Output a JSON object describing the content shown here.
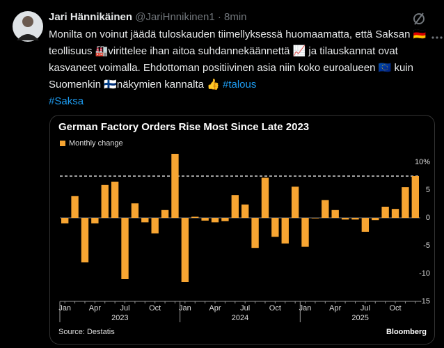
{
  "tweet": {
    "name": "Jari Hännikäinen",
    "handle": "@JariHnnikinen1",
    "time": "8min",
    "text": "Monilta on voinut jäädä tuloskauden tiimellyksessä huomaamatta, että Saksan 🇩🇪teollisuus 🏭virittelee ihan aitoa suhdannekäännettä 📈 ja tilauskannat ovat kasvaneet voimalla. Ehdottoman positiivinen asia niin koko euroalueen 🇪🇺 kuin Suomenkin 🇫🇮näkymien kannalta 👍",
    "hashtags": [
      "#talous",
      "#Saksa"
    ]
  },
  "chart_data": {
    "type": "bar",
    "title": "German Factory Orders Rise Most Since Late 2023",
    "source": "Source: Destatis",
    "brand": "Bloomberg",
    "categories": [
      "Jan",
      null,
      null,
      "Apr",
      null,
      null,
      "Jul",
      null,
      null,
      "Oct",
      null,
      null,
      "Jan",
      null,
      null,
      "Apr",
      null,
      null,
      "Jul",
      null,
      null,
      "Oct",
      null,
      null,
      "Jan",
      null,
      null,
      "Apr",
      null,
      null,
      "Jul",
      null,
      null,
      "Oct",
      null,
      null
    ],
    "x_group_labels": [
      "2023",
      "2024",
      "2025"
    ],
    "series": [
      {
        "name": "Monthly change",
        "color": "#f7a532",
        "values": [
          -1,
          3.9,
          -8,
          -1,
          5.9,
          6.5,
          -11,
          2.6,
          -0.8,
          -2.8,
          1.4,
          11.5,
          -11.5,
          0.2,
          -0.5,
          -0.8,
          -0.6,
          4.1,
          2.4,
          -5.4,
          7.2,
          -3.4,
          -4.6,
          5.6,
          -5.2,
          -0.1,
          3.2,
          1.4,
          -0.3,
          -0.3,
          -2.5,
          -0.4,
          2.0,
          1.6,
          5.5,
          7.5
        ]
      }
    ],
    "reference_line": 7.5,
    "ylim": [
      -15,
      12
    ],
    "yticks": [
      {
        "value": 10,
        "label": "10%"
      },
      5,
      0,
      -5,
      -10,
      -15
    ]
  }
}
